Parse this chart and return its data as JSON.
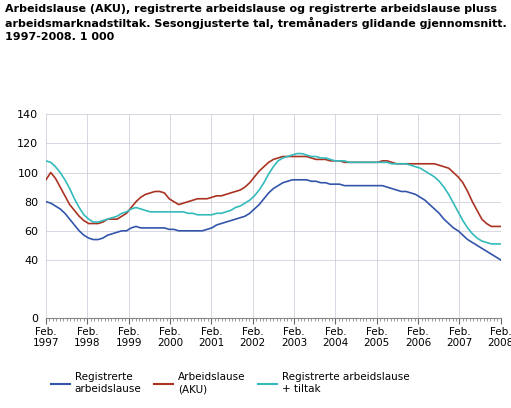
{
  "title_line1": "Arbeidslause (AKU), registrerte arbeidslause og registrerte arbeidslause pluss",
  "title_line2": "arbeidsmarknadstiltak. Sesongjusterte tal, tremånaders glidande gjennomsnitt.",
  "title_line3": "1997-2008. 1 000",
  "ylim": [
    0,
    140
  ],
  "yticks": [
    0,
    40,
    60,
    80,
    100,
    120,
    140
  ],
  "xlabel_years": [
    "Feb.\n1997",
    "Feb.\n1998",
    "Feb.\n1999",
    "Feb.\n2000",
    "Feb.\n2001",
    "Feb.\n2002",
    "Feb.\n2003",
    "Feb.\n2004",
    "Feb.\n2005",
    "Feb.\n2006",
    "Feb.\n2007",
    "Feb.\n2008"
  ],
  "color_reg": "#3355aa",
  "color_aku": "#aa3322",
  "color_tiltak": "#33bbbb",
  "legend": [
    {
      "label": "Registrerte\narbeidslause",
      "color": "#3355aa"
    },
    {
      "label": "Arbeidslause\n(AKU)",
      "color": "#aa3322"
    },
    {
      "label": "Registrerte arbeidslause\n+ tiltak",
      "color": "#33bbbb"
    }
  ],
  "reg": [
    80,
    79,
    77,
    75,
    72,
    68,
    64,
    60,
    57,
    55,
    54,
    54,
    55,
    57,
    58,
    59,
    60,
    60,
    62,
    63,
    62,
    62,
    62,
    62,
    62,
    62,
    61,
    61,
    60,
    60,
    60,
    60,
    60,
    60,
    61,
    62,
    64,
    65,
    66,
    67,
    68,
    69,
    70,
    72,
    75,
    78,
    82,
    86,
    89,
    91,
    93,
    94,
    95,
    95,
    95,
    95,
    94,
    94,
    93,
    93,
    92,
    92,
    92,
    91,
    91,
    91,
    91,
    91,
    91,
    91,
    91,
    91,
    90,
    89,
    88,
    87,
    87,
    86,
    85,
    83,
    81,
    78,
    75,
    72,
    68,
    65,
    62,
    60,
    57,
    54,
    52,
    50,
    48,
    46,
    44,
    42,
    40
  ],
  "aku": [
    95,
    100,
    96,
    90,
    84,
    78,
    74,
    70,
    67,
    65,
    65,
    65,
    66,
    68,
    68,
    68,
    70,
    72,
    76,
    80,
    83,
    85,
    86,
    87,
    87,
    86,
    82,
    80,
    78,
    79,
    80,
    81,
    82,
    82,
    82,
    83,
    84,
    84,
    85,
    86,
    87,
    88,
    90,
    93,
    97,
    101,
    104,
    107,
    109,
    110,
    111,
    111,
    111,
    111,
    111,
    111,
    110,
    109,
    109,
    109,
    108,
    108,
    108,
    107,
    107,
    107,
    107,
    107,
    107,
    107,
    107,
    108,
    108,
    107,
    106,
    106,
    106,
    106,
    106,
    106,
    106,
    106,
    106,
    105,
    104,
    103,
    100,
    97,
    93,
    87,
    80,
    74,
    68,
    65,
    63,
    63,
    63
  ],
  "tiltak": [
    108,
    107,
    104,
    100,
    95,
    89,
    82,
    76,
    71,
    68,
    66,
    66,
    67,
    68,
    69,
    70,
    72,
    73,
    75,
    76,
    75,
    74,
    73,
    73,
    73,
    73,
    73,
    73,
    73,
    73,
    72,
    72,
    71,
    71,
    71,
    71,
    72,
    72,
    73,
    74,
    76,
    77,
    79,
    81,
    84,
    88,
    93,
    99,
    104,
    108,
    110,
    111,
    112,
    113,
    113,
    112,
    111,
    111,
    110,
    110,
    109,
    108,
    108,
    108,
    107,
    107,
    107,
    107,
    107,
    107,
    107,
    107,
    107,
    106,
    106,
    106,
    106,
    105,
    104,
    103,
    101,
    99,
    97,
    94,
    90,
    85,
    79,
    73,
    67,
    62,
    58,
    55,
    53,
    52,
    51,
    51,
    51
  ]
}
